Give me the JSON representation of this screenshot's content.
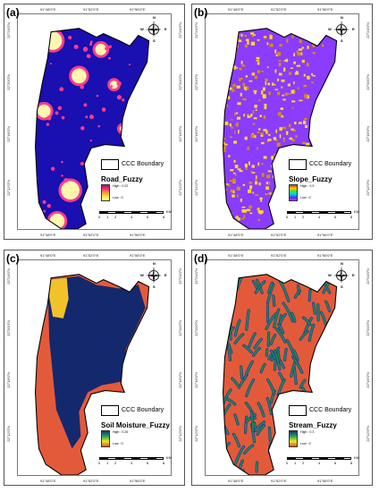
{
  "panels": [
    {
      "id": "a",
      "label": "(a)",
      "legend_title": "Road_Fuzzy",
      "high": "High : 0.22",
      "low": "Low : 0",
      "ramp_colors": [
        "#a40d8a",
        "#ff2f6c",
        "#ff9a3a",
        "#ffe84a",
        "#ffffa0"
      ],
      "fill_main": "#1a0fb0",
      "fill_secondary": "#fff7b0",
      "accent": "#ff3c8c"
    },
    {
      "id": "b",
      "label": "(b)",
      "legend_title": "Slope_Fuzzy",
      "high": "High : 0.9",
      "low": "Low : 0",
      "ramp_colors": [
        "#ff2020",
        "#ffcc00",
        "#30e830",
        "#00d0ff",
        "#5a2aff",
        "#a040ff"
      ],
      "fill_main": "#8a3cff",
      "fill_secondary": "#d88a10",
      "accent": "#ffd820"
    },
    {
      "id": "c",
      "label": "(c)",
      "legend_title": "Soil Moisture_Fuzzy",
      "high": "High : 0.26",
      "low": "Low : 0",
      "ramp_colors": [
        "#1a2f7a",
        "#2aa050",
        "#e8e820",
        "#e8542a"
      ],
      "fill_main": "#14286e",
      "fill_secondary": "#e35a3a",
      "accent": "#f2c22a"
    },
    {
      "id": "d",
      "label": "(d)",
      "legend_title": "Stream_Fuzzy",
      "high": "High : 0.3",
      "low": "Low : 0",
      "ramp_colors": [
        "#1a2f7a",
        "#2aa050",
        "#e8e820",
        "#e8542a"
      ],
      "fill_main": "#e35a3a",
      "fill_secondary": "#1e8a5a",
      "accent": "#1a3a8a"
    }
  ],
  "common": {
    "boundary_label": "CCC Boundary",
    "north_letters": {
      "n": "N",
      "s": "S",
      "e": "E",
      "w": "W"
    },
    "scale_unit": "KM",
    "scale_ticks": [
      "0",
      "1",
      "2",
      "4",
      "6",
      "8"
    ],
    "lon_labels": [
      "91°48'0\"E",
      "91°52'0\"E",
      "91°56'0\"E"
    ],
    "lat_labels": [
      "22°24'0\"N",
      "22°20'0\"N",
      "22°16'0\"N",
      "22°12'0\"N"
    ]
  }
}
